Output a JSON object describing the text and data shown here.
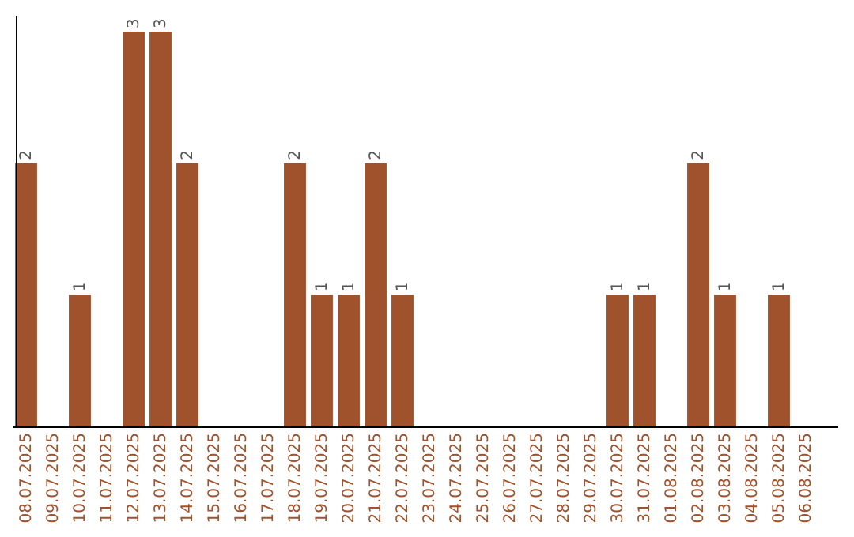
{
  "chart_data": {
    "type": "bar",
    "categories": [
      "08.07.2025",
      "09.07.2025",
      "10.07.2025",
      "11.07.2025",
      "12.07.2025",
      "13.07.2025",
      "14.07.2025",
      "15.07.2025",
      "16.07.2025",
      "17.07.2025",
      "18.07.2025",
      "19.07.2025",
      "20.07.2025",
      "21.07.2025",
      "22.07.2025",
      "23.07.2025",
      "24.07.2025",
      "25.07.2025",
      "26.07.2025",
      "27.07.2025",
      "28.07.2025",
      "29.07.2025",
      "30.07.2025",
      "31.07.2025",
      "01.08.2025",
      "02.08.2025",
      "03.08.2025",
      "04.08.2025",
      "05.08.2025",
      "06.08.2025"
    ],
    "values": [
      2,
      0,
      1,
      0,
      3,
      3,
      2,
      0,
      0,
      0,
      2,
      1,
      1,
      2,
      1,
      0,
      0,
      0,
      0,
      0,
      0,
      0,
      1,
      1,
      0,
      2,
      1,
      0,
      1,
      0
    ],
    "value_labels": [
      "2",
      null,
      "1",
      null,
      "3",
      "3",
      "2",
      null,
      null,
      null,
      "2",
      "1",
      "1",
      "2",
      "1",
      null,
      null,
      null,
      null,
      null,
      null,
      null,
      "1",
      "1",
      null,
      "2",
      "1",
      null,
      "1",
      null
    ],
    "color": "#a0522d",
    "grid": false,
    "tick_labels": "x"
  }
}
